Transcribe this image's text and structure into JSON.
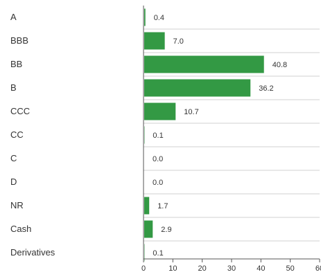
{
  "chart_data": {
    "type": "bar",
    "orientation": "horizontal",
    "title": "",
    "xlabel": "",
    "ylabel": "",
    "categories": [
      "A",
      "BBB",
      "BB",
      "B",
      "CCC",
      "CC",
      "C",
      "D",
      "NR",
      "Cash",
      "Derivatives"
    ],
    "values": [
      0.4,
      7.0,
      40.8,
      36.2,
      10.7,
      0.1,
      0.0,
      0.0,
      1.7,
      2.9,
      0.1
    ],
    "value_labels": [
      "0.4",
      "7.0",
      "40.8",
      "36.2",
      "10.7",
      "0.1",
      "0.0",
      "0.0",
      "1.7",
      "2.9",
      "0.1"
    ],
    "xlim": [
      0,
      60
    ],
    "xticks": [
      0,
      10,
      20,
      30,
      40,
      50,
      60
    ],
    "xtick_labels": [
      "0",
      "10",
      "20",
      "30",
      "40",
      "50",
      "60"
    ],
    "grid": "horizontal separators",
    "colors": {
      "bar": "#339944",
      "separator": "#d0d0d0",
      "axis": "#555555"
    }
  }
}
